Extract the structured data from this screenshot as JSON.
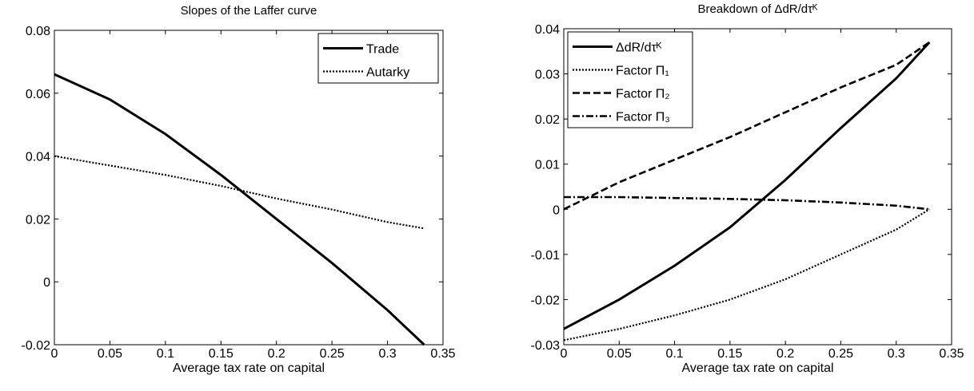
{
  "chart_data": [
    {
      "type": "line",
      "title": "Slopes of the Laffer curve",
      "x_label": "Average tax rate on capital",
      "x": [
        0,
        0.05,
        0.1,
        0.15,
        0.2,
        0.25,
        0.3,
        0.333
      ],
      "series": [
        {
          "name": "Trade",
          "color": "#000000",
          "dash": "solid",
          "values": [
            0.066,
            0.058,
            0.047,
            0.034,
            0.02,
            0.006,
            -0.009,
            -0.02
          ]
        },
        {
          "name": "Autarky",
          "color": "#000000",
          "dash": "dotted",
          "values": [
            0.04,
            0.037,
            0.034,
            0.0305,
            0.0265,
            0.023,
            0.019,
            0.017
          ]
        }
      ],
      "xlim": [
        0,
        0.35
      ],
      "xticks": [
        0,
        0.05,
        0.1,
        0.15,
        0.2,
        0.25,
        0.3,
        0.35
      ],
      "ylim": [
        -0.02,
        0.08
      ],
      "yticks": [
        -0.02,
        0,
        0.02,
        0.04,
        0.06,
        0.08
      ],
      "grid": false,
      "legend": "upper right"
    },
    {
      "type": "line",
      "title": "Breakdown of ΔdR/dτᴷ",
      "x_label": "Average tax rate on capital",
      "x": [
        0,
        0.05,
        0.1,
        0.15,
        0.2,
        0.25,
        0.3,
        0.33
      ],
      "series": [
        {
          "name": "ΔdR/dτᴷ",
          "color": "#000000",
          "dash": "solid",
          "values": [
            -0.0265,
            -0.02,
            -0.0125,
            -0.004,
            0.0065,
            0.018,
            0.029,
            0.037
          ]
        },
        {
          "name": "Factor Π₁",
          "color": "#000000",
          "dash": "dotted",
          "values": [
            -0.029,
            -0.0265,
            -0.0235,
            -0.02,
            -0.0155,
            -0.01,
            -0.0045,
            0
          ]
        },
        {
          "name": "Factor Π₂",
          "color": "#000000",
          "dash": "dashed",
          "values": [
            0,
            0.006,
            0.011,
            0.016,
            0.0215,
            0.027,
            0.032,
            0.037
          ]
        },
        {
          "name": "Factor Π₃",
          "color": "#000000",
          "dash": "dashdot",
          "values": [
            0.0027,
            0.0027,
            0.0025,
            0.0023,
            0.002,
            0.0015,
            0.0008,
            0
          ]
        }
      ],
      "xlim": [
        0,
        0.35
      ],
      "xticks": [
        0,
        0.05,
        0.1,
        0.15,
        0.2,
        0.25,
        0.3,
        0.35
      ],
      "ylim": [
        -0.03,
        0.04
      ],
      "yticks": [
        -0.03,
        -0.02,
        -0.01,
        0,
        0.01,
        0.02,
        0.03,
        0.04
      ],
      "grid": false,
      "legend": "upper left"
    }
  ]
}
